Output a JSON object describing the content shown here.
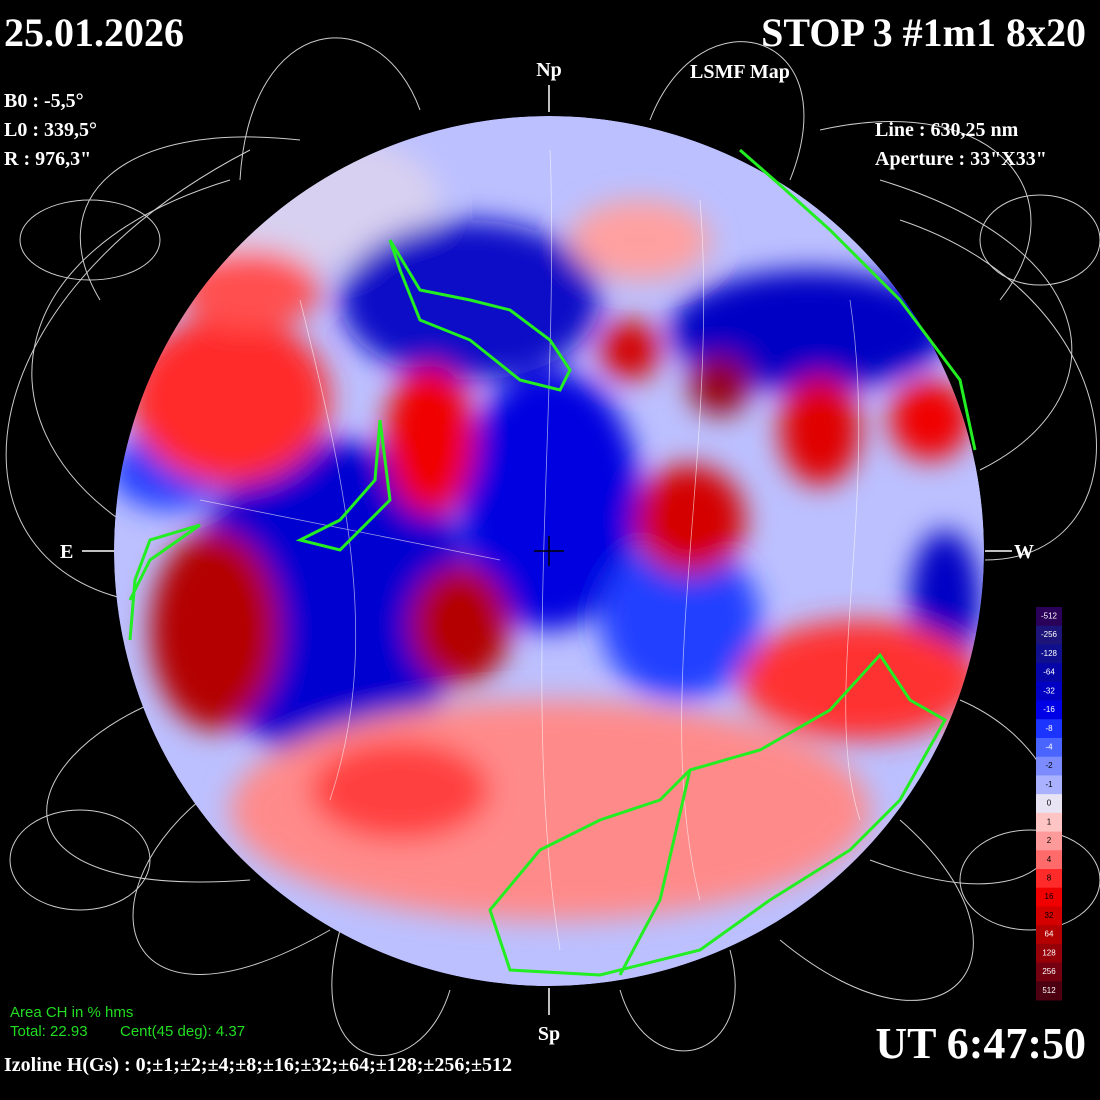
{
  "header": {
    "date": "25.01.2026",
    "title": "STOP 3 #1m1 8x20",
    "subtitle": "LSMF  Map"
  },
  "params": [
    "B0 : -5,5°",
    "L0 : 339,5°",
    "R  : 976,3\""
  ],
  "instrument": [
    "Line :  630,25 nm",
    "Aperture : 33\"X33\""
  ],
  "directions": {
    "north": "Np",
    "south": "Sp",
    "east": "E",
    "west": "W"
  },
  "colorbar": {
    "levels": [
      {
        "label": "-512",
        "color": "#2a0058"
      },
      {
        "label": "-256",
        "color": "#1c1478"
      },
      {
        "label": "-128",
        "color": "#10108e"
      },
      {
        "label": "-64",
        "color": "#0606a8"
      },
      {
        "label": "-32",
        "color": "#0000c4"
      },
      {
        "label": "-16",
        "color": "#0000e6"
      },
      {
        "label": "-8",
        "color": "#1c34ff"
      },
      {
        "label": "-4",
        "color": "#4a64ff"
      },
      {
        "label": "-2",
        "color": "#7c8cff"
      },
      {
        "label": "-1",
        "color": "#aab2ff"
      },
      {
        "label": "0",
        "color": "#e8e4f4"
      },
      {
        "label": "1",
        "color": "#ffc4c4"
      },
      {
        "label": "2",
        "color": "#ff9a9a"
      },
      {
        "label": "4",
        "color": "#ff6a6a"
      },
      {
        "label": "8",
        "color": "#ff2a2a"
      },
      {
        "label": "16",
        "color": "#f00000"
      },
      {
        "label": "32",
        "color": "#d40000"
      },
      {
        "label": "64",
        "color": "#b40000"
      },
      {
        "label": "128",
        "color": "#960008"
      },
      {
        "label": "256",
        "color": "#740010"
      },
      {
        "label": "512",
        "color": "#4c0010"
      }
    ]
  },
  "ch_area": {
    "title": "Area CH in % hms",
    "total": "Total: 22.93",
    "central": "Cent(45 deg): 4.37"
  },
  "isolines": "Izoline H(Gs) : 0;±1;±2;±4;±8;±16;±32;±64;±128;±256;±512",
  "time": "UT 6:47:50"
}
